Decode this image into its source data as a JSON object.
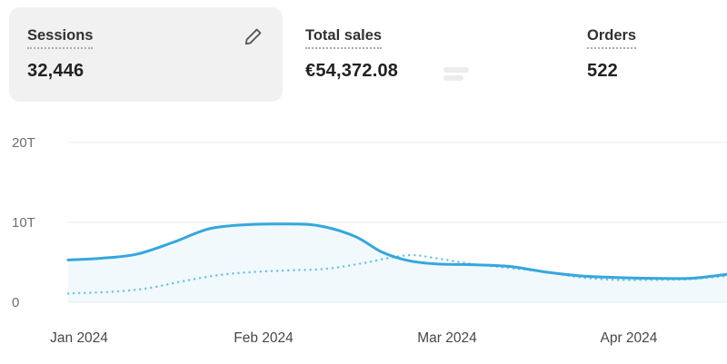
{
  "metrics": {
    "sessions": {
      "label": "Sessions",
      "value": "32,446"
    },
    "total_sales": {
      "label": "Total sales",
      "value": "€54,372.08"
    },
    "orders": {
      "label": "Orders",
      "value": "522"
    }
  },
  "chart_data": {
    "type": "line",
    "ylim": [
      0,
      20
    ],
    "unit": "T",
    "grid": true,
    "y_ticks": [
      {
        "value": 0,
        "label": "0"
      },
      {
        "value": 10,
        "label": "10T"
      },
      {
        "value": 20,
        "label": "20T"
      }
    ],
    "x_ticks": [
      {
        "pos": 0.0166,
        "label": "Jan 2024"
      },
      {
        "pos": 0.2966,
        "label": "Feb 2024"
      },
      {
        "pos": 0.5752,
        "label": "Mar 2024"
      },
      {
        "pos": 0.851,
        "label": "Apr 2024"
      }
    ],
    "series": [
      {
        "name": "current-period-sessions",
        "style": "solid",
        "color": "#35a7dd",
        "area": true,
        "points": [
          [
            0.0,
            5.3
          ],
          [
            0.048,
            5.5
          ],
          [
            0.103,
            6.0
          ],
          [
            0.159,
            7.5
          ],
          [
            0.214,
            9.2
          ],
          [
            0.269,
            9.7
          ],
          [
            0.324,
            9.8
          ],
          [
            0.379,
            9.6
          ],
          [
            0.434,
            8.3
          ],
          [
            0.476,
            6.3
          ],
          [
            0.517,
            5.2
          ],
          [
            0.559,
            4.8
          ],
          [
            0.614,
            4.7
          ],
          [
            0.669,
            4.5
          ],
          [
            0.724,
            3.8
          ],
          [
            0.779,
            3.3
          ],
          [
            0.834,
            3.1
          ],
          [
            0.89,
            3.0
          ],
          [
            0.945,
            3.0
          ],
          [
            1.0,
            3.5
          ]
        ]
      },
      {
        "name": "previous-period-sessions",
        "style": "dotted",
        "color": "#6ec3e9",
        "area": false,
        "points": [
          [
            0.0,
            1.1
          ],
          [
            0.062,
            1.3
          ],
          [
            0.117,
            1.7
          ],
          [
            0.172,
            2.6
          ],
          [
            0.228,
            3.4
          ],
          [
            0.283,
            3.8
          ],
          [
            0.338,
            4.0
          ],
          [
            0.393,
            4.2
          ],
          [
            0.448,
            4.9
          ],
          [
            0.49,
            5.6
          ],
          [
            0.524,
            5.9
          ],
          [
            0.559,
            5.5
          ],
          [
            0.614,
            4.8
          ],
          [
            0.669,
            4.3
          ],
          [
            0.724,
            3.8
          ],
          [
            0.779,
            3.1
          ],
          [
            0.834,
            2.8
          ],
          [
            0.89,
            2.8
          ],
          [
            0.945,
            2.9
          ],
          [
            1.0,
            3.3
          ]
        ]
      }
    ],
    "colors": {
      "area": "rgba(53,167,221,0.07)",
      "grid": "#ebebeb",
      "axis_text": "#6b6f72"
    }
  }
}
